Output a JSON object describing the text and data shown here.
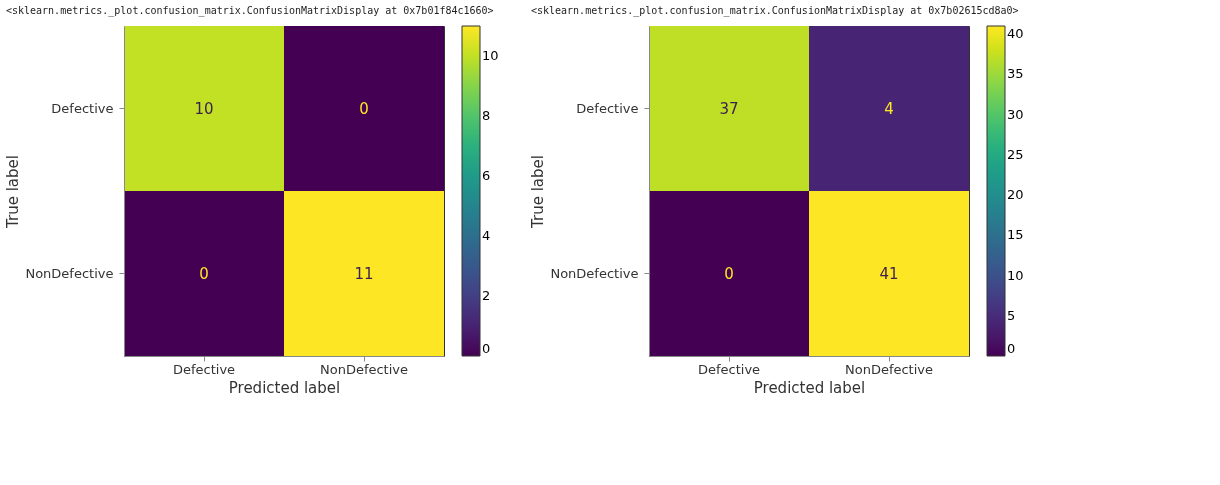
{
  "chart_data": [
    {
      "type": "heatmap",
      "title": "<sklearn.metrics._plot.confusion_matrix.ConfusionMatrixDisplay at 0x7b01f84c1660>",
      "xlabel": "Predicted label",
      "ylabel": "True label",
      "categories": [
        "Defective",
        "NonDefective"
      ],
      "y_categories": [
        "Defective",
        "NonDefective"
      ],
      "cells": [
        [
          10,
          0
        ],
        [
          0,
          11
        ]
      ],
      "clim": [
        0,
        11
      ],
      "cticks": [
        0,
        2,
        4,
        6,
        8,
        10
      ],
      "data_labels": true
    },
    {
      "type": "heatmap",
      "title": "<sklearn.metrics._plot.confusion_matrix.ConfusionMatrixDisplay at 0x7b02615cd8a0>",
      "xlabel": "Predicted label",
      "ylabel": "True label",
      "categories": [
        "Defective",
        "NonDefective"
      ],
      "y_categories": [
        "Defective",
        "NonDefective"
      ],
      "cells": [
        [
          37,
          4
        ],
        [
          0,
          41
        ]
      ],
      "clim": [
        0,
        41
      ],
      "cticks": [
        0,
        5,
        10,
        15,
        20,
        25,
        30,
        35,
        40
      ],
      "data_labels": true
    }
  ]
}
